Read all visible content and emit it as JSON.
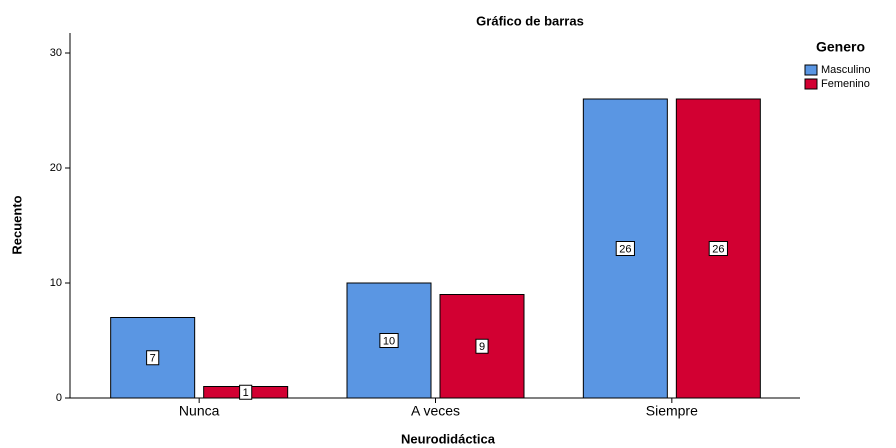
{
  "chart_data": {
    "type": "bar",
    "title": "Gráfico de barras",
    "x_label": "Neurodidáctica",
    "y_label": "Recuento",
    "categories": [
      "Nunca",
      "A veces",
      "Siempre"
    ],
    "legend_title": "Genero",
    "series": [
      {
        "name": "Masculino",
        "color": "#5a96e3",
        "values": [
          7,
          10,
          26
        ]
      },
      {
        "name": "Femenino",
        "color": "#d20032",
        "values": [
          1,
          9,
          26
        ]
      }
    ],
    "ylim": [
      0,
      30
    ],
    "yticks": [
      0,
      10,
      20,
      30
    ],
    "legend": "right"
  }
}
